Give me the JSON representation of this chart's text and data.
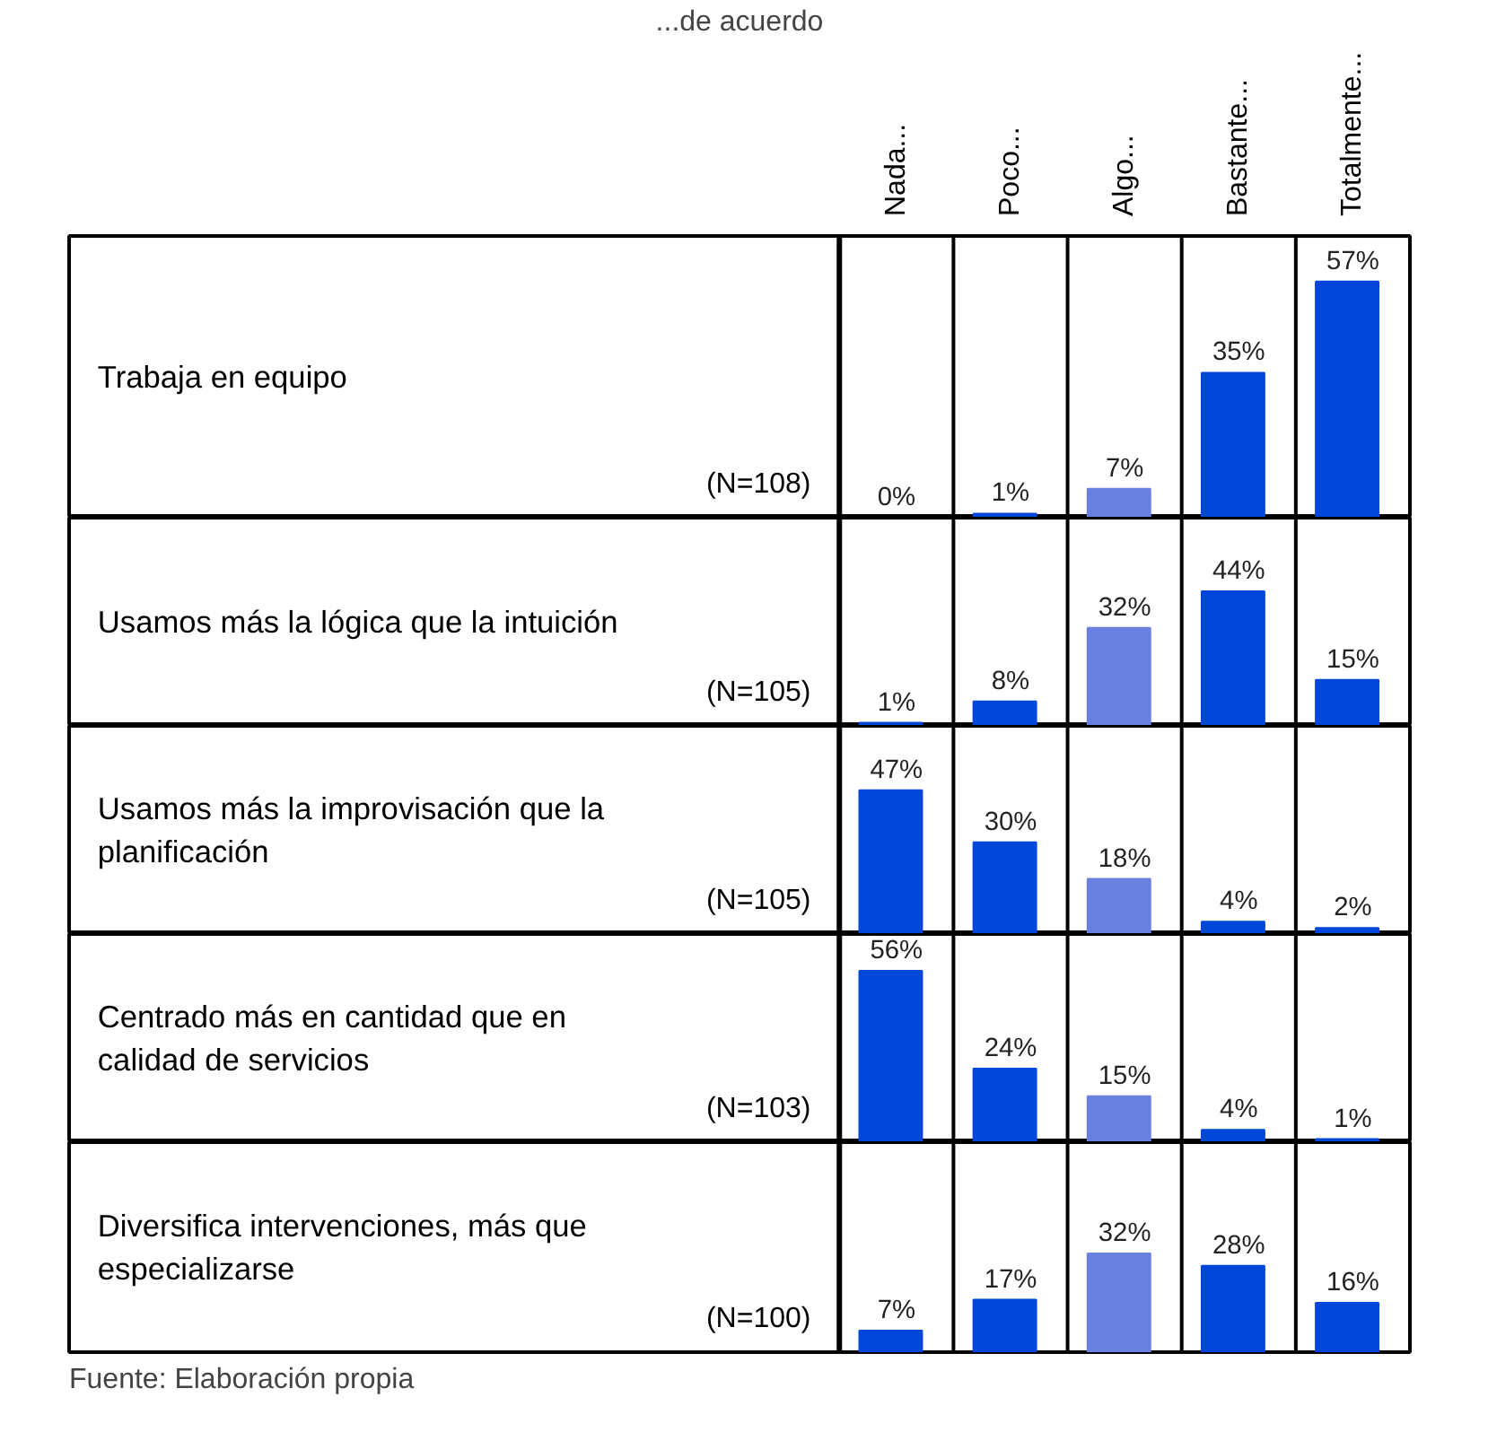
{
  "chart_data": [
    {
      "type": "bar",
      "ylabel": "Trabaja en equipo",
      "annotations": [
        "(N=108)"
      ],
      "xlabel": "...de acuerdo",
      "categories": [
        "Nada...",
        "Poco...",
        "Algo...",
        "Bastante...",
        "Totalmente..."
      ],
      "tick_labels": "x",
      "ylim": [
        0,
        68
      ],
      "series": [
        {
          "colors": [
            "#0047d9",
            "#0047d9",
            "#6a80e0",
            "#0047d9",
            "#0047d9"
          ],
          "values": [
            0,
            1,
            7,
            35,
            57
          ],
          "value_labels": [
            "0%",
            "1%",
            "7%",
            "35%",
            "57%"
          ]
        }
      ]
    },
    {
      "type": "bar",
      "ylabel": "Usamos más la lógica que la intuición",
      "annotations": [
        "(N=105)"
      ],
      "categories": [
        null,
        null,
        null,
        null,
        null
      ],
      "tick_labels": false,
      "ylim": [
        0,
        68
      ],
      "series": [
        {
          "colors": [
            "#0047d9",
            "#0047d9",
            "#6a80e0",
            "#0047d9",
            "#0047d9"
          ],
          "values": [
            1,
            8,
            32,
            44,
            15
          ],
          "value_labels": [
            "1%",
            "8%",
            "32%",
            "44%",
            "15%"
          ]
        }
      ]
    },
    {
      "type": "bar",
      "ylabel": "Usamos más la improvisación que la planificación",
      "annotations": [
        "(N=105)"
      ],
      "categories": [
        null,
        null,
        null,
        null,
        null
      ],
      "tick_labels": false,
      "ylim": [
        0,
        68
      ],
      "series": [
        {
          "colors": [
            "#0047d9",
            "#0047d9",
            "#6a80e0",
            "#0047d9",
            "#0047d9"
          ],
          "values": [
            47,
            30,
            18,
            4,
            2
          ],
          "value_labels": [
            "47%",
            "30%",
            "18%",
            "4%",
            "2%"
          ]
        }
      ]
    },
    {
      "type": "bar",
      "ylabel": "Centrado más en cantidad que en calidad de servicios",
      "annotations": [
        "(N=103)"
      ],
      "categories": [
        null,
        null,
        null,
        null,
        null
      ],
      "tick_labels": false,
      "ylim": [
        0,
        68
      ],
      "series": [
        {
          "colors": [
            "#0047d9",
            "#0047d9",
            "#6a80e0",
            "#0047d9",
            "#0047d9"
          ],
          "values": [
            56,
            24,
            15,
            4,
            1
          ],
          "value_labels": [
            "56%",
            "24%",
            "15%",
            "4%",
            "1%"
          ]
        }
      ]
    },
    {
      "type": "bar",
      "ylabel": "Diversifica intervenciones, más que especializarse",
      "annotations": [
        "(N=100)",
        "Fuente: Elaboración propia"
      ],
      "categories": [
        null,
        null,
        null,
        null,
        null
      ],
      "tick_labels": false,
      "ylim": [
        0,
        68
      ],
      "series": [
        {
          "colors": [
            "#0047d9",
            "#0047d9",
            "#6a80e0",
            "#0047d9",
            "#0047d9"
          ],
          "values": [
            7,
            17,
            32,
            28,
            16
          ],
          "value_labels": [
            "7%",
            "17%",
            "32%",
            "28%",
            "16%"
          ]
        }
      ]
    }
  ]
}
